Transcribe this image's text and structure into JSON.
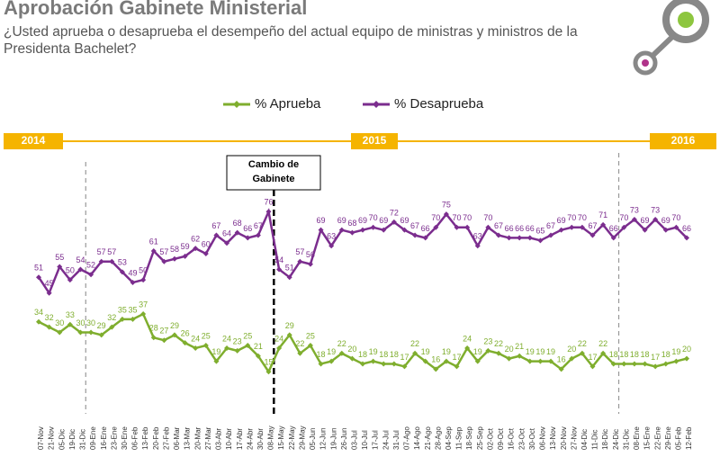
{
  "chart_data": {
    "type": "line",
    "title": "Aprobación Gabinete Ministerial",
    "subtitle": "¿Usted aprueba o desaprueba el desempeño del actual equipo de ministras y ministros de la Presidenta Bachelet?",
    "years": [
      "2014",
      "2015",
      "2016"
    ],
    "annotation": "Cambio de Gabinete",
    "categories": [
      "07-Nov",
      "21-Nov",
      "05-Dic",
      "19-Dic",
      "31-Dic",
      "09-Ene",
      "16-Ene",
      "23-Ene",
      "30-Ene",
      "06-Feb",
      "13-Feb",
      "20-Feb",
      "27-Feb",
      "06-Mar",
      "13-Mar",
      "20-Mar",
      "27-Mar",
      "03-Abr",
      "10-Abr",
      "17-Abr",
      "24-Abr",
      "30-Abr",
      "08-May",
      "15-May",
      "22-May",
      "29-May",
      "05-Jun",
      "12-Jun",
      "19-Jun",
      "26-Jun",
      "03-Jul",
      "10-Jul",
      "17-Jul",
      "24-Jul",
      "31-Jul",
      "07-Ago",
      "14-Ago",
      "21-Ago",
      "28-Ago",
      "04-Sep",
      "11-Sep",
      "18-Sep",
      "25-Sep",
      "02-Oct",
      "09-Oct",
      "16-Oct",
      "23-Oct",
      "30-Oct",
      "06-Nov",
      "13-Nov",
      "20-Nov",
      "27-Nov",
      "04-Dic",
      "11-Dic",
      "18-Dic",
      "24-Dic",
      "31-Dic",
      "08-Ene",
      "15-Ene",
      "22-Ene",
      "29-Ene",
      "05-Feb",
      "12-Feb"
    ],
    "series": [
      {
        "name": "% Aprueba",
        "color": "#7fae2e",
        "values": [
          34,
          32,
          30,
          33,
          30,
          30,
          29,
          32,
          35,
          35,
          37,
          28,
          27,
          29,
          26,
          24,
          25,
          19,
          24,
          23,
          25,
          21,
          15,
          24,
          29,
          22,
          25,
          18,
          19,
          22,
          20,
          18,
          19,
          18,
          18,
          17,
          22,
          19,
          16,
          19,
          17,
          24,
          19,
          23,
          22,
          20,
          21,
          19,
          19,
          19,
          16,
          20,
          22,
          17,
          22,
          18,
          18,
          18,
          18,
          17,
          18,
          19,
          20
        ]
      },
      {
        "name": "% Desaprueba",
        "color": "#7b2d8e",
        "values": [
          51,
          45,
          55,
          50,
          54,
          52,
          57,
          57,
          53,
          49,
          50,
          61,
          57,
          58,
          59,
          62,
          60,
          67,
          64,
          68,
          66,
          67,
          76,
          54,
          51,
          57,
          56,
          69,
          63,
          69,
          68,
          69,
          70,
          69,
          72,
          69,
          67,
          66,
          70,
          75,
          70,
          70,
          63,
          70,
          67,
          66,
          66,
          66,
          65,
          67,
          69,
          70,
          70,
          67,
          71,
          66,
          70,
          73,
          69,
          73,
          69,
          70,
          66
        ]
      }
    ],
    "ylim": [
      0,
      85
    ]
  }
}
